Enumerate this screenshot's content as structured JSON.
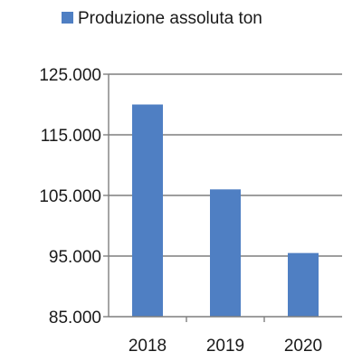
{
  "chart_data": {
    "type": "bar",
    "title": "",
    "xlabel": "",
    "ylabel": "",
    "categories": [
      "2018",
      "2019",
      "2020"
    ],
    "series": [
      {
        "name": "Produzione assoluta ton",
        "values": [
          120000,
          106000,
          95500
        ]
      }
    ],
    "ylim": [
      85000,
      125000
    ],
    "yticks": [
      85000,
      95000,
      105000,
      115000,
      125000
    ],
    "ytick_labels": [
      "85.000",
      "95.000",
      "105.000",
      "115.000",
      "125.000"
    ],
    "grid": true,
    "legend_position": "top",
    "colors": {
      "bar": "#4F7FC3",
      "grid": "#7f7f7f",
      "axis": "#7f7f7f"
    }
  }
}
